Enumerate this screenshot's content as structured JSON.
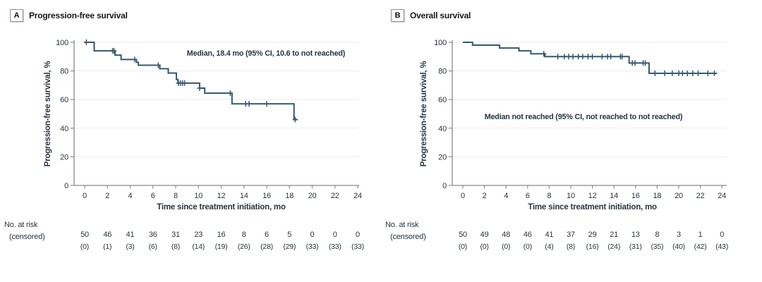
{
  "figure": {
    "panels": [
      {
        "label": "A",
        "title": "Progression-free survival"
      },
      {
        "label": "B",
        "title": "Overall survival"
      }
    ],
    "colors": {
      "curve": "#36586c",
      "text": "#2b3440",
      "annotation": "#273546",
      "grid": "#ececec",
      "axis": "#8a8a8a"
    }
  },
  "chart_data": [
    {
      "type": "line",
      "subtype": "kaplan-meier-step",
      "panel": "A",
      "title": "Progression-free survival",
      "xlabel": "Time since treatment initiation, mo",
      "ylabel": "Progression-free survival, %",
      "annotation": "Median, 18.4 mo (95% CI, 10.6 to not reached)",
      "xlim": [
        0,
        24
      ],
      "ylim": [
        0,
        100
      ],
      "xticks": [
        0,
        2,
        4,
        6,
        8,
        10,
        12,
        14,
        16,
        18,
        20,
        22,
        24
      ],
      "yticks": [
        0,
        20,
        40,
        60,
        80,
        100
      ],
      "grid": "horizontal",
      "series": [
        {
          "name": "Progression-free survival",
          "steps": [
            [
              0,
              100
            ],
            [
              0.84,
              94
            ],
            [
              2.67,
              91
            ],
            [
              3.2,
              88
            ],
            [
              4.55,
              86
            ],
            [
              4.72,
              84
            ],
            [
              6.6,
              81.5
            ],
            [
              7.35,
              78.5
            ],
            [
              8.06,
              74
            ],
            [
              8.2,
              71.5
            ],
            [
              10.1,
              68
            ],
            [
              10.55,
              64.5
            ],
            [
              12.95,
              57
            ],
            [
              18.4,
              46
            ]
          ],
          "end_time": 18.72,
          "censor_marks": [
            [
              0.15,
              100
            ],
            [
              2.45,
              94
            ],
            [
              2.58,
              94
            ],
            [
              4.4,
              88
            ],
            [
              6.47,
              84
            ],
            [
              8.25,
              71.5
            ],
            [
              8.42,
              71.5
            ],
            [
              8.6,
              71.5
            ],
            [
              8.78,
              71.5
            ],
            [
              10.1,
              68
            ],
            [
              12.8,
              64.5
            ],
            [
              14.15,
              57
            ],
            [
              14.45,
              57
            ],
            [
              16.0,
              57
            ],
            [
              18.5,
              46
            ]
          ]
        }
      ],
      "risk_table": {
        "label_line1": "No. at risk",
        "label_line2": "(censored)",
        "times": [
          0,
          2,
          4,
          6,
          8,
          10,
          12,
          14,
          16,
          18,
          20,
          22,
          24
        ],
        "at_risk": [
          50,
          46,
          41,
          36,
          31,
          23,
          16,
          8,
          6,
          5,
          0,
          0,
          0
        ],
        "censored": [
          "(0)",
          "(1)",
          "(3)",
          "(6)",
          "(8)",
          "(14)",
          "(19)",
          "(26)",
          "(28)",
          "(29)",
          "(33)",
          "(33)",
          "(33)"
        ]
      }
    },
    {
      "type": "line",
      "subtype": "kaplan-meier-step",
      "panel": "B",
      "title": "Overall survival",
      "xlabel": "Time since treatment initiation, mo",
      "ylabel": "Progression-free survival, %",
      "annotation": "Median not reached (95% CI, not reached to not reached)",
      "xlim": [
        0,
        24
      ],
      "ylim": [
        0,
        100
      ],
      "xticks": [
        0,
        2,
        4,
        6,
        8,
        10,
        12,
        14,
        16,
        18,
        20,
        22,
        24
      ],
      "yticks": [
        0,
        20,
        40,
        60,
        80,
        100
      ],
      "grid": "horizontal",
      "series": [
        {
          "name": "Overall survival",
          "steps": [
            [
              0,
              100
            ],
            [
              0.9,
              98
            ],
            [
              3.4,
              96
            ],
            [
              5.2,
              94
            ],
            [
              6.3,
              92
            ],
            [
              7.6,
              90
            ],
            [
              15.4,
              85.5
            ],
            [
              17.25,
              78.3
            ]
          ],
          "end_time": 23.55,
          "censor_marks": [
            [
              7.5,
              92
            ],
            [
              8.8,
              90
            ],
            [
              9.4,
              90
            ],
            [
              9.8,
              90
            ],
            [
              10.2,
              90
            ],
            [
              10.7,
              90
            ],
            [
              11.1,
              90
            ],
            [
              11.6,
              90
            ],
            [
              12.0,
              90
            ],
            [
              12.9,
              90
            ],
            [
              13.4,
              90
            ],
            [
              13.7,
              90
            ],
            [
              14.6,
              90
            ],
            [
              14.75,
              90
            ],
            [
              15.7,
              85.5
            ],
            [
              15.95,
              85.5
            ],
            [
              16.7,
              85.5
            ],
            [
              16.9,
              85.5
            ],
            [
              17.8,
              78.3
            ],
            [
              18.7,
              78.3
            ],
            [
              19.4,
              78.3
            ],
            [
              20.0,
              78.3
            ],
            [
              20.35,
              78.3
            ],
            [
              20.8,
              78.3
            ],
            [
              21.3,
              78.3
            ],
            [
              21.8,
              78.3
            ],
            [
              22.7,
              78.3
            ],
            [
              23.3,
              78.3
            ]
          ]
        }
      ],
      "risk_table": {
        "label_line1": "No. at risk",
        "label_line2": "(censored)",
        "times": [
          0,
          2,
          4,
          6,
          8,
          10,
          12,
          14,
          16,
          18,
          20,
          22,
          24
        ],
        "at_risk": [
          50,
          49,
          48,
          46,
          41,
          37,
          29,
          21,
          13,
          8,
          3,
          1,
          0
        ],
        "censored": [
          "(0)",
          "(0)",
          "(0)",
          "(0)",
          "(4)",
          "(8)",
          "(16)",
          "(24)",
          "(31)",
          "(35)",
          "(40)",
          "(42)",
          "(43)"
        ]
      }
    }
  ]
}
